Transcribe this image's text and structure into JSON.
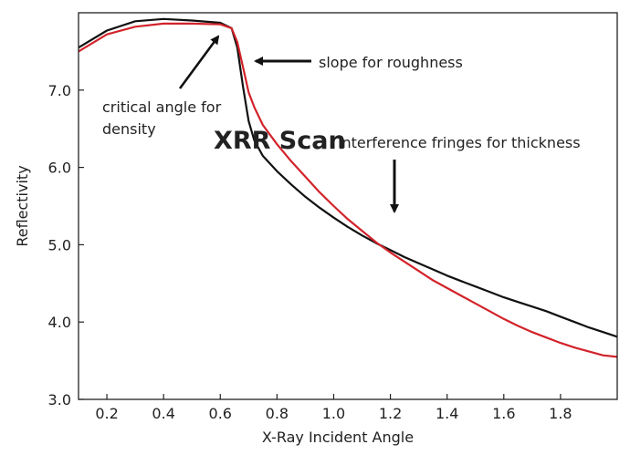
{
  "chart_data": {
    "type": "line",
    "title": "XRR Scan",
    "xlabel": "X-Ray Incident Angle",
    "ylabel": "Reflectivity",
    "xlim": [
      0.1,
      2.0
    ],
    "ylim": [
      3.0,
      8.0
    ],
    "x_ticks": [
      "0.2",
      "0.4",
      "0.6",
      "0.8",
      "1.0",
      "1.2",
      "1.4",
      "1.6",
      "1.8"
    ],
    "y_ticks": [
      "3.0",
      "4.0",
      "5.0",
      "6.0",
      "7.0"
    ],
    "grid": false,
    "colors": {
      "black_series": "#111111",
      "red_series": "#d2232a"
    },
    "series": [
      {
        "color": "#111111",
        "x": [
          0.1,
          0.2,
          0.3,
          0.4,
          0.5,
          0.6,
          0.64,
          0.66,
          0.68,
          0.7,
          0.72,
          0.75,
          0.8,
          0.85,
          0.9,
          0.95,
          1.0,
          1.05,
          1.1,
          1.15,
          1.2,
          1.25,
          1.3,
          1.35,
          1.4,
          1.45,
          1.5,
          1.55,
          1.6,
          1.65,
          1.7,
          1.75,
          1.8,
          1.85,
          1.9,
          1.95,
          2.0
        ],
        "values": [
          7.55,
          7.77,
          7.89,
          7.92,
          7.9,
          7.87,
          7.8,
          7.55,
          7.05,
          6.6,
          6.35,
          6.15,
          5.95,
          5.78,
          5.62,
          5.48,
          5.35,
          5.23,
          5.12,
          5.02,
          4.93,
          4.84,
          4.76,
          4.68,
          4.6,
          4.53,
          4.46,
          4.39,
          4.32,
          4.26,
          4.2,
          4.14,
          4.07,
          4.0,
          3.93,
          3.87,
          3.81
        ]
      },
      {
        "color": "#d2232a",
        "x": [
          0.1,
          0.2,
          0.3,
          0.4,
          0.5,
          0.6,
          0.64,
          0.66,
          0.68,
          0.7,
          0.72,
          0.75,
          0.8,
          0.85,
          0.9,
          0.95,
          1.0,
          1.05,
          1.1,
          1.15,
          1.2,
          1.25,
          1.3,
          1.35,
          1.4,
          1.45,
          1.5,
          1.55,
          1.6,
          1.65,
          1.7,
          1.75,
          1.8,
          1.85,
          1.9,
          1.95,
          2.0
        ],
        "values": [
          7.5,
          7.72,
          7.82,
          7.86,
          7.86,
          7.85,
          7.8,
          7.62,
          7.3,
          6.97,
          6.78,
          6.55,
          6.3,
          6.08,
          5.88,
          5.68,
          5.5,
          5.33,
          5.18,
          5.03,
          4.9,
          4.78,
          4.66,
          4.54,
          4.44,
          4.34,
          4.24,
          4.14,
          4.04,
          3.95,
          3.87,
          3.8,
          3.73,
          3.67,
          3.62,
          3.57,
          3.55
        ]
      }
    ],
    "annotations": {
      "critical_angle": "critical angle for density",
      "slope": "slope for roughness",
      "fringes": "interference fringes for thickness"
    }
  }
}
